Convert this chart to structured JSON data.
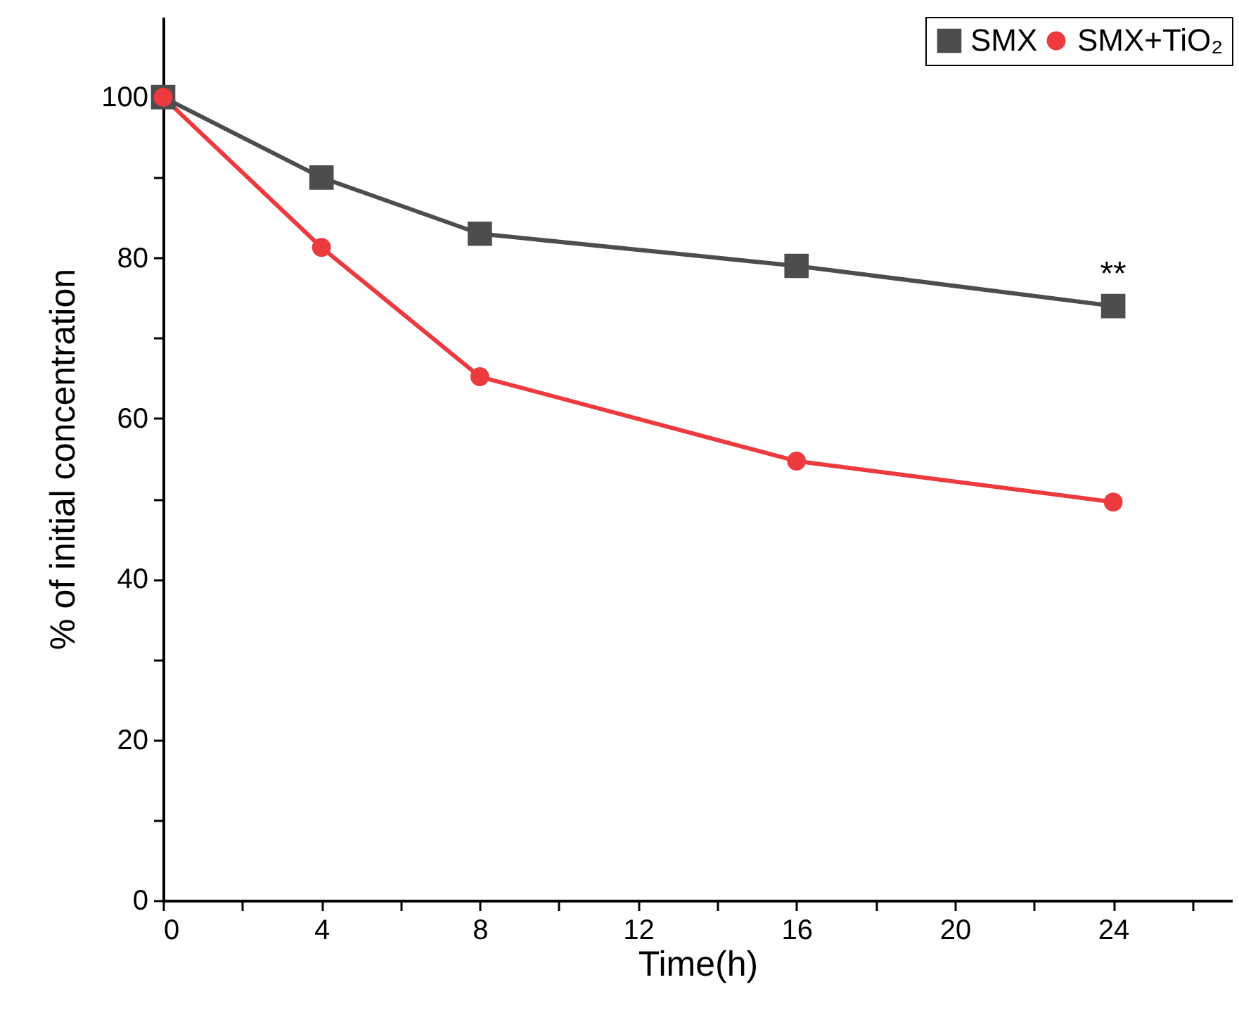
{
  "chart_data": {
    "type": "line",
    "xlabel": "Time(h)",
    "ylabel": "% of initial concentration",
    "x": [
      0,
      4,
      8,
      16,
      24
    ],
    "series": [
      {
        "name": "SMX",
        "color": "#4d4d4d",
        "marker": "square",
        "values": [
          100,
          90,
          83,
          79,
          74
        ]
      },
      {
        "name": "SMX+TiO₂",
        "color": "#ec3a3f",
        "marker": "circle",
        "values": [
          100,
          81.3,
          65.2,
          54.7,
          49.6
        ]
      }
    ],
    "xlim": [
      0,
      27
    ],
    "xticks": [
      0,
      {
        "value": 2,
        "label": null
      },
      4,
      {
        "value": 6,
        "label": null
      },
      8,
      {
        "value": 10,
        "label": null
      },
      12,
      {
        "value": 14,
        "label": null
      },
      16,
      {
        "value": 18,
        "label": null
      },
      20,
      {
        "value": 22,
        "label": null
      },
      24,
      {
        "value": 26,
        "label": null
      }
    ],
    "ylim": [
      0,
      110
    ],
    "yticks": [
      0,
      {
        "value": 10,
        "label": null
      },
      20,
      {
        "value": 30,
        "label": null
      },
      40,
      {
        "value": 50,
        "label": null
      },
      60,
      {
        "value": 70,
        "label": null
      },
      80,
      {
        "value": 90,
        "label": null
      },
      100
    ],
    "annotations": [
      {
        "text": "**",
        "x": 24,
        "y": 74
      }
    ],
    "grid": false,
    "legend": "top right",
    "line_style": "solid"
  }
}
